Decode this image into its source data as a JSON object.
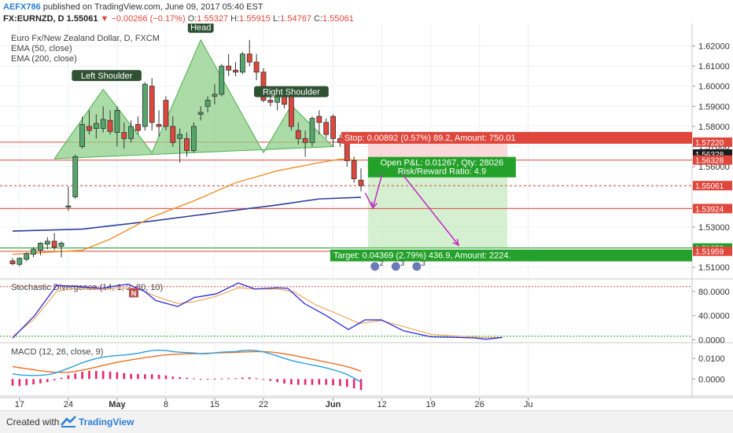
{
  "header": {
    "author": "AEFX786",
    "published_text": "published on TradingView.com, June 09, 2017 05:40 EST",
    "symbol_line": "FX:EURNZD, D",
    "last_price": "1.55061",
    "change": "▼ −0.00266 (−0.17%)",
    "ohlc": [
      {
        "label": "O:",
        "value": "1.55327"
      },
      {
        "label": "H:",
        "value": "1.55915"
      },
      {
        "label": "L:",
        "value": "1.54767"
      },
      {
        "label": "C:",
        "value": "1.55061"
      }
    ]
  },
  "footer": {
    "created_with": "Created with",
    "brand": "TradingView"
  },
  "colors": {
    "bull": "#54a66b",
    "bear": "#e0473c",
    "ema50": "#f0902a",
    "ema200": "#2c3e9c",
    "pattern_fill": "#8fd08a",
    "stoch_k": "#2a2ad8",
    "stoch_d": "#f0a050",
    "macd": "#2aa0e0",
    "signal": "#f07020",
    "hist": "#e8246a",
    "arrow": "#c42ac4"
  },
  "chart_data": [
    {
      "type": "candlestick",
      "title": "Euro Fx/New Zealand Dollar, D, FXCM",
      "legend": [
        "EMA (50, close)",
        "EMA (200, close)"
      ],
      "ylim": [
        1.505,
        1.628
      ],
      "y_ticks": [
        "1.62000",
        "1.61000",
        "1.60000",
        "1.59000",
        "1.58000",
        "1.57000",
        "1.56000",
        "1.55000",
        "1.54000",
        "1.53000",
        "1.52000",
        "1.51000"
      ],
      "y_tick_values": [
        1.62,
        1.61,
        1.6,
        1.59,
        1.58,
        1.57,
        1.56,
        1.55,
        1.54,
        1.53,
        1.52,
        1.51
      ],
      "x_ticks": [
        {
          "label": "17",
          "bar": 1
        },
        {
          "label": "24",
          "bar": 8
        },
        {
          "label": "May",
          "bar": 15
        },
        {
          "label": "8",
          "bar": 22
        },
        {
          "label": "15",
          "bar": 29
        },
        {
          "label": "22",
          "bar": 36
        },
        {
          "label": "Jun",
          "bar": 46
        },
        {
          "label": "12",
          "bar": 53
        },
        {
          "label": "19",
          "bar": 60
        },
        {
          "label": "26",
          "bar": 67
        },
        {
          "label": "Ju",
          "bar": 74
        }
      ],
      "candles": [
        {
          "o": 1.5132,
          "h": 1.5145,
          "l": 1.511,
          "c": 1.5118
        },
        {
          "o": 1.5115,
          "h": 1.515,
          "l": 1.5105,
          "c": 1.5145
        },
        {
          "o": 1.514,
          "h": 1.5175,
          "l": 1.513,
          "c": 1.5168
        },
        {
          "o": 1.5165,
          "h": 1.52,
          "l": 1.515,
          "c": 1.519
        },
        {
          "o": 1.5185,
          "h": 1.5225,
          "l": 1.516,
          "c": 1.522
        },
        {
          "o": 1.5215,
          "h": 1.525,
          "l": 1.519,
          "c": 1.523
        },
        {
          "o": 1.523,
          "h": 1.527,
          "l": 1.5185,
          "c": 1.52
        },
        {
          "o": 1.5205,
          "h": 1.523,
          "l": 1.515,
          "c": 1.522
        },
        {
          "o": 1.54,
          "h": 1.55,
          "l": 1.538,
          "c": 1.5405
        },
        {
          "o": 1.545,
          "h": 1.566,
          "l": 1.544,
          "c": 1.565
        },
        {
          "o": 1.57,
          "h": 1.585,
          "l": 1.569,
          "c": 1.581
        },
        {
          "o": 1.58,
          "h": 1.588,
          "l": 1.576,
          "c": 1.578
        },
        {
          "o": 1.579,
          "h": 1.586,
          "l": 1.574,
          "c": 1.5815
        },
        {
          "o": 1.579,
          "h": 1.59,
          "l": 1.577,
          "c": 1.5835
        },
        {
          "o": 1.583,
          "h": 1.588,
          "l": 1.576,
          "c": 1.5775
        },
        {
          "o": 1.577,
          "h": 1.59,
          "l": 1.57,
          "c": 1.588
        },
        {
          "o": 1.577,
          "h": 1.582,
          "l": 1.569,
          "c": 1.574
        },
        {
          "o": 1.574,
          "h": 1.583,
          "l": 1.572,
          "c": 1.58
        },
        {
          "o": 1.581,
          "h": 1.585,
          "l": 1.576,
          "c": 1.578
        },
        {
          "o": 1.58,
          "h": 1.602,
          "l": 1.578,
          "c": 1.601
        },
        {
          "o": 1.6,
          "h": 1.604,
          "l": 1.578,
          "c": 1.582
        },
        {
          "o": 1.581,
          "h": 1.588,
          "l": 1.575,
          "c": 1.58
        },
        {
          "o": 1.593,
          "h": 1.595,
          "l": 1.578,
          "c": 1.58
        },
        {
          "o": 1.58,
          "h": 1.585,
          "l": 1.57,
          "c": 1.572
        },
        {
          "o": 1.574,
          "h": 1.579,
          "l": 1.562,
          "c": 1.576
        },
        {
          "o": 1.574,
          "h": 1.577,
          "l": 1.565,
          "c": 1.568
        },
        {
          "o": 1.568,
          "h": 1.582,
          "l": 1.567,
          "c": 1.58
        },
        {
          "o": 1.586,
          "h": 1.59,
          "l": 1.583,
          "c": 1.587
        },
        {
          "o": 1.59,
          "h": 1.595,
          "l": 1.587,
          "c": 1.593
        },
        {
          "o": 1.595,
          "h": 1.601,
          "l": 1.591,
          "c": 1.596
        },
        {
          "o": 1.596,
          "h": 1.611,
          "l": 1.595,
          "c": 1.61
        },
        {
          "o": 1.61,
          "h": 1.616,
          "l": 1.605,
          "c": 1.608
        },
        {
          "o": 1.608,
          "h": 1.612,
          "l": 1.605,
          "c": 1.607
        },
        {
          "o": 1.607,
          "h": 1.617,
          "l": 1.606,
          "c": 1.616
        },
        {
          "o": 1.616,
          "h": 1.623,
          "l": 1.61,
          "c": 1.612
        },
        {
          "o": 1.612,
          "h": 1.616,
          "l": 1.603,
          "c": 1.607
        },
        {
          "o": 1.607,
          "h": 1.609,
          "l": 1.592,
          "c": 1.593
        },
        {
          "o": 1.593,
          "h": 1.598,
          "l": 1.59,
          "c": 1.592
        },
        {
          "o": 1.592,
          "h": 1.596,
          "l": 1.588,
          "c": 1.595
        },
        {
          "o": 1.595,
          "h": 1.597,
          "l": 1.589,
          "c": 1.591
        },
        {
          "o": 1.596,
          "h": 1.597,
          "l": 1.578,
          "c": 1.58
        },
        {
          "o": 1.578,
          "h": 1.582,
          "l": 1.571,
          "c": 1.574
        },
        {
          "o": 1.574,
          "h": 1.578,
          "l": 1.565,
          "c": 1.572
        },
        {
          "o": 1.572,
          "h": 1.585,
          "l": 1.57,
          "c": 1.584
        },
        {
          "o": 1.585,
          "h": 1.588,
          "l": 1.576,
          "c": 1.582
        },
        {
          "o": 1.582,
          "h": 1.584,
          "l": 1.574,
          "c": 1.576
        },
        {
          "o": 1.585,
          "h": 1.586,
          "l": 1.57,
          "c": 1.574
        },
        {
          "o": 1.574,
          "h": 1.576,
          "l": 1.57,
          "c": 1.572
        },
        {
          "o": 1.573,
          "h": 1.574,
          "l": 1.56,
          "c": 1.563
        },
        {
          "o": 1.563,
          "h": 1.565,
          "l": 1.552,
          "c": 1.554
        },
        {
          "o": 1.5533,
          "h": 1.5592,
          "l": 1.5477,
          "c": 1.5506
        }
      ],
      "ema50": [
        [
          0,
          1.5165
        ],
        [
          10,
          1.5185
        ],
        [
          14,
          1.524
        ],
        [
          20,
          1.535
        ],
        [
          26,
          1.543
        ],
        [
          32,
          1.552
        ],
        [
          38,
          1.558
        ],
        [
          44,
          1.562
        ],
        [
          47,
          1.5638
        ],
        [
          50,
          1.5632
        ]
      ],
      "ema200": [
        [
          0,
          1.528
        ],
        [
          10,
          1.529
        ],
        [
          20,
          1.533
        ],
        [
          30,
          1.5375
        ],
        [
          38,
          1.541
        ],
        [
          44,
          1.544
        ],
        [
          50,
          1.5448
        ]
      ],
      "pattern": {
        "points": [
          [
            6,
            1.564
          ],
          [
            13,
            1.5985
          ],
          [
            20,
            1.567
          ],
          [
            27,
            1.623
          ],
          [
            36,
            1.567
          ],
          [
            40,
            1.5905
          ],
          [
            46,
            1.57
          ]
        ],
        "labels": [
          {
            "text": "Left Shoulder",
            "bar": 13.5,
            "price": 1.6045
          },
          {
            "text": "Head",
            "bar": 27,
            "price": 1.6285
          },
          {
            "text": "Right Shoulder",
            "bar": 40,
            "price": 1.5965
          }
        ]
      },
      "levels": [
        {
          "price": 1.5722,
          "label": "1.57220",
          "color": "#e0473c"
        },
        {
          "price": 1.5663,
          "label": "1.56328",
          "color": "#1b1b1b"
        },
        {
          "price": 1.5633,
          "label": "1.56328",
          "color": "#e0473c"
        },
        {
          "price": 1.5506,
          "label": "1.55061",
          "color": "#e0473c"
        },
        {
          "price": 1.5392,
          "label": "1.53924",
          "color": "#e0473c"
        },
        {
          "price": 1.5196,
          "label": "1.51959",
          "color": "#1fa12a"
        },
        {
          "price": 1.518,
          "label": "1.51959",
          "color": "#e0473c"
        }
      ],
      "position": {
        "stop": "Stop: 0.00892 (0.57%) 89.2, Amount: 750.01",
        "pnl": "Open P&L: 0.01267, Qty: 28026",
        "rr": "Risk/Reward Ratio: 4.9",
        "target": "Target: 0.04369 (2.79%) 436.9, Amount: 2224.",
        "entry": 1.5633,
        "stop_price": 1.5722,
        "target_price": 1.5196,
        "from_bar": 51,
        "to_bar": 71
      },
      "arrows": [
        [
          [
            53,
            1.556
          ],
          [
            51.7,
            1.5395
          ],
          [
            50.6,
            1.547
          ]
        ],
        [
          [
            56,
            1.556
          ],
          [
            64,
            1.521
          ]
        ]
      ],
      "event_badges": [
        "2",
        "3",
        "3"
      ]
    },
    {
      "type": "line",
      "title": "Stochastic Divergence (14, 1, 2, 80, 10)",
      "ylim": [
        -2,
        98
      ],
      "y_ticks": [
        "80.0000",
        "40.0000",
        "0.0000"
      ],
      "y_tick_values": [
        80,
        40,
        0
      ],
      "levels": [
        88,
        6
      ],
      "marker": "N",
      "series": [
        {
          "values": [
            [
              0,
              3
            ],
            [
              4,
              40
            ],
            [
              8,
              90
            ],
            [
              12,
              88
            ],
            [
              16,
              85
            ],
            [
              18,
              88
            ],
            [
              21,
              92
            ],
            [
              24,
              80
            ],
            [
              26,
              65
            ],
            [
              30,
              55
            ],
            [
              33,
              70
            ],
            [
              37,
              76
            ],
            [
              41,
              94
            ],
            [
              44,
              84
            ],
            [
              48,
              86
            ],
            [
              50,
              85
            ],
            [
              53,
              60
            ],
            [
              57,
              40
            ],
            [
              61,
              17
            ],
            [
              64,
              33
            ],
            [
              67,
              33
            ],
            [
              71,
              15
            ],
            [
              76,
              5
            ],
            [
              81,
              4
            ],
            [
              84,
              3
            ],
            [
              86,
              1
            ],
            [
              89,
              4
            ]
          ]
        },
        {
          "values": [
            [
              0,
              5
            ],
            [
              4,
              35
            ],
            [
              8,
              80
            ],
            [
              12,
              86
            ],
            [
              16,
              83
            ],
            [
              19,
              86
            ],
            [
              23,
              84
            ],
            [
              26,
              72
            ],
            [
              30,
              60
            ],
            [
              33,
              63
            ],
            [
              37,
              72
            ],
            [
              41,
              86
            ],
            [
              44,
              84
            ],
            [
              48,
              84
            ],
            [
              51,
              80
            ],
            [
              55,
              58
            ],
            [
              59,
              43
            ],
            [
              63,
              27
            ],
            [
              67,
              32
            ],
            [
              71,
              22
            ],
            [
              76,
              9
            ],
            [
              81,
              6
            ],
            [
              85,
              4
            ],
            [
              89,
              4
            ]
          ]
        }
      ]
    },
    {
      "type": "line",
      "title": "MACD (12, 26, close, 9)",
      "ylim": [
        -0.0075,
        0.0165
      ],
      "y_ticks": [
        "0.0100",
        "0.0000"
      ],
      "y_tick_values": [
        0.01,
        0.0
      ],
      "series": [
        {
          "values": [
            0.0025,
            0.002,
            0.0018,
            0.0017,
            0.0018,
            0.0021,
            0.0028,
            0.0039,
            0.0052,
            0.0065,
            0.0079,
            0.009,
            0.0099,
            0.0106,
            0.0111,
            0.0114,
            0.0116,
            0.012,
            0.0125,
            0.0132,
            0.0138,
            0.014,
            0.0138,
            0.0133,
            0.013,
            0.0128,
            0.0126,
            0.0123,
            0.0123,
            0.0127,
            0.013,
            0.0132,
            0.0133,
            0.0138,
            0.014,
            0.0137,
            0.0132,
            0.0122,
            0.0112,
            0.01,
            0.009,
            0.0082,
            0.0075,
            0.0068,
            0.0062,
            0.0054,
            0.0045,
            0.0035,
            0.0022,
            0.0005,
            -0.0015
          ]
        },
        {
          "values": [
            0.006,
            0.0055,
            0.005,
            0.0045,
            0.004,
            0.0036,
            0.0033,
            0.0032,
            0.0033,
            0.0037,
            0.0043,
            0.005,
            0.0058,
            0.0066,
            0.0074,
            0.0081,
            0.0087,
            0.0093,
            0.0098,
            0.0104,
            0.0108,
            0.0113,
            0.0117,
            0.0119,
            0.0121,
            0.0122,
            0.0123,
            0.0124,
            0.0125,
            0.0126,
            0.0127,
            0.0128,
            0.0129,
            0.0131,
            0.0132,
            0.0133,
            0.0133,
            0.0131,
            0.0127,
            0.0122,
            0.0116,
            0.011,
            0.0103,
            0.0096,
            0.0089,
            0.0082,
            0.0075,
            0.0068,
            0.006,
            0.005,
            0.0038
          ]
        },
        {
          "values": [
            -0.0032,
            -0.0034,
            -0.003,
            -0.0026,
            -0.0021,
            -0.0015,
            -0.0006,
            0.0006,
            0.0018,
            0.0027,
            0.0035,
            0.0039,
            0.0039,
            0.0039,
            0.0036,
            0.0033,
            0.0029,
            0.0025,
            0.0024,
            0.0023,
            0.0023,
            0.0021,
            0.0017,
            0.0012,
            0.0009,
            0.0006,
            0.0003,
            -0.0001,
            -0.0003,
            0.0001,
            0.0003,
            0.0004,
            0.0004,
            0.0007,
            0.0008,
            0.0004,
            -0.0001,
            -0.0009,
            -0.0015,
            -0.0022,
            -0.0026,
            -0.0028,
            -0.0028,
            -0.0028,
            -0.0027,
            -0.0028,
            -0.003,
            -0.0033,
            -0.0038,
            -0.0045,
            -0.0053
          ]
        }
      ]
    }
  ]
}
